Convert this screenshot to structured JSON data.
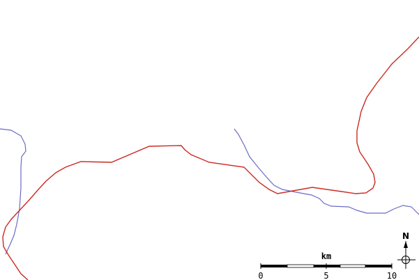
{
  "map": {
    "background": "#ffffff",
    "red_line_color": "#cc2a22",
    "blue_line_color": "#6a6ac8"
  },
  "scale_bar": {
    "unit": "km",
    "labels": [
      "0",
      "5",
      "10"
    ]
  },
  "north_arrow": {
    "letter": "N",
    "icon": "compass-rose-icon"
  }
}
